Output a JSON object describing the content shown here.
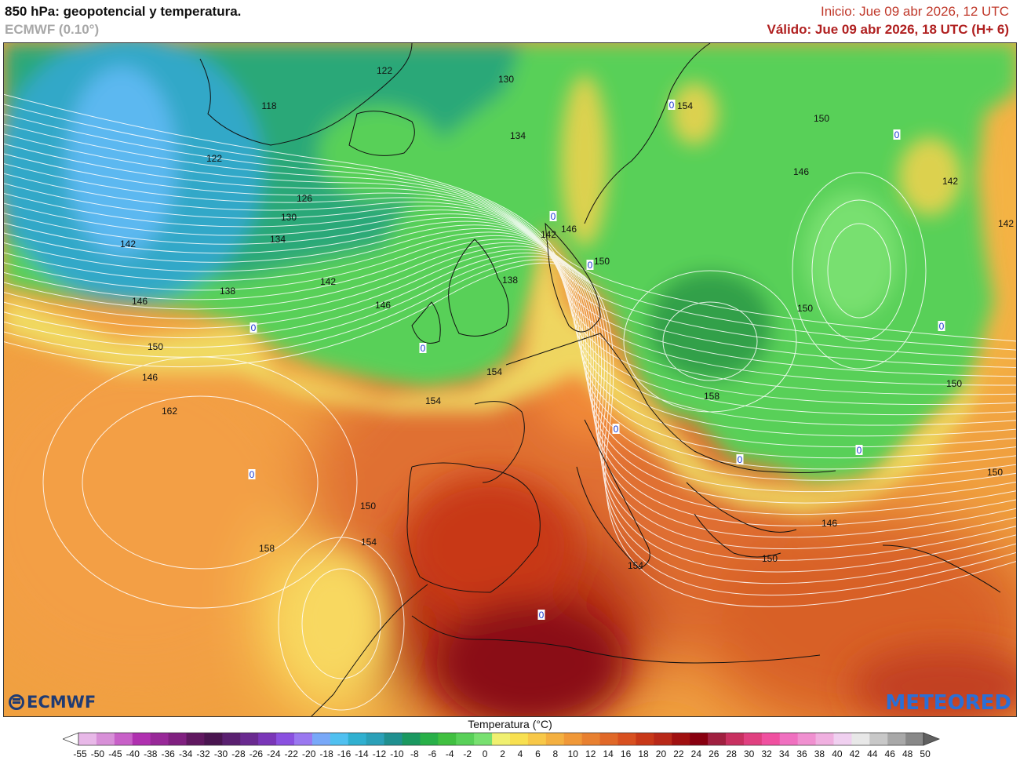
{
  "header": {
    "title": "850 hPa: geopotencial y temperatura.",
    "model": "ECMWF (0.10°)",
    "init": "Inicio: Jue 09 abr 2026, 12 UTC",
    "valid": "Válido: Jue 09 abr 2026, 18 UTC (H+ 6)"
  },
  "logos": {
    "left": "ECMWF",
    "right": "METEORED"
  },
  "legend": {
    "title": "Temperatura (°C)",
    "ticks": [
      "-55",
      "-50",
      "-45",
      "-40",
      "-38",
      "-36",
      "-34",
      "-32",
      "-30",
      "-28",
      "-26",
      "-24",
      "-22",
      "-20",
      "-18",
      "-16",
      "-14",
      "-12",
      "-10",
      "-8",
      "-6",
      "-4",
      "-2",
      "0",
      "2",
      "4",
      "6",
      "8",
      "10",
      "12",
      "14",
      "16",
      "18",
      "20",
      "22",
      "24",
      "26",
      "28",
      "30",
      "32",
      "34",
      "36",
      "38",
      "40",
      "42",
      "44",
      "46",
      "48",
      "50"
    ],
    "colors": [
      "#ffffff",
      "#e8b8e8",
      "#d890d8",
      "#c860c8",
      "#b030b0",
      "#982898",
      "#802080",
      "#601860",
      "#4a1550",
      "#5a2070",
      "#6a2a90",
      "#7a36b8",
      "#8a50e0",
      "#9a78f0",
      "#78a8f8",
      "#50c0f0",
      "#30b0d0",
      "#2ba0b8",
      "#209090",
      "#1a9860",
      "#28b048",
      "#40c040",
      "#58d058",
      "#78e070",
      "#f0f070",
      "#f8e050",
      "#f8c848",
      "#f4b040",
      "#f09838",
      "#e88030",
      "#e06828",
      "#d85020",
      "#c83818",
      "#b82818",
      "#a01010",
      "#880010",
      "#a02040",
      "#c83060",
      "#e04080",
      "#f050a0",
      "#f070c0",
      "#f090d0",
      "#f0b0e0",
      "#f0d0f0",
      "#e8e8e8",
      "#c8c8c8",
      "#a8a8a8",
      "#888888",
      "#606060"
    ]
  },
  "contour_labels": [
    "122",
    "130",
    "118",
    "154",
    "150",
    "134",
    "122",
    "146",
    "142",
    "126",
    "130",
    "134",
    "142",
    "0",
    "142",
    "146",
    "150",
    "142",
    "138",
    "138",
    "142",
    "146",
    "146",
    "0",
    "150",
    "150",
    "0",
    "154",
    "146",
    "158",
    "150",
    "162",
    "154",
    "0",
    "0",
    "150",
    "150",
    "146",
    "158",
    "154",
    "150",
    "154",
    "0",
    "0",
    "0",
    "0",
    "0",
    "0",
    "0"
  ]
}
